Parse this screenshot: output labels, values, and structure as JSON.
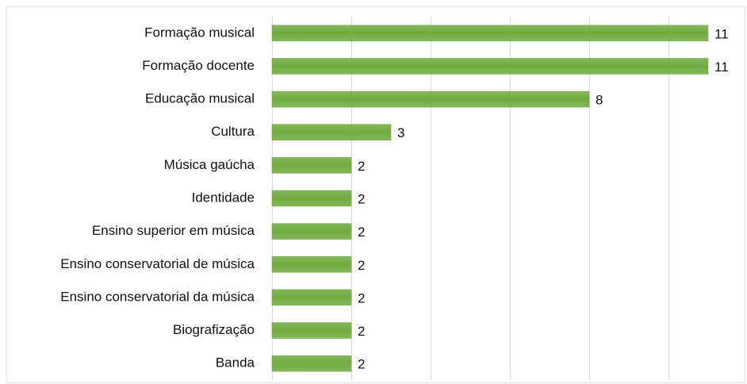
{
  "chart_data": {
    "type": "bar",
    "orientation": "horizontal",
    "categories": [
      "Formação musical",
      "Formação docente",
      "Educação musical",
      "Cultura",
      "Música gaúcha",
      "Identidade",
      "Ensino superior em música",
      "Ensino conservatorial de música",
      "Ensino conservatorial da música",
      "Biografização",
      "Banda"
    ],
    "values": [
      11,
      11,
      8,
      3,
      2,
      2,
      2,
      2,
      2,
      2,
      2
    ],
    "color": "#6fab3f",
    "xlim": [
      0,
      11
    ],
    "xticks": [
      0,
      2,
      4,
      6,
      8,
      10
    ],
    "grid": true
  }
}
